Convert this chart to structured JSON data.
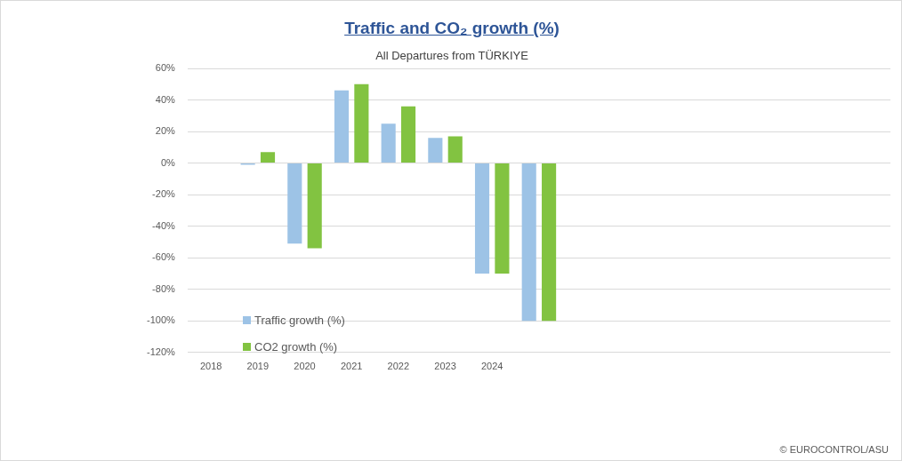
{
  "chart_data": {
    "type": "bar",
    "title": "Traffic and CO₂ growth (%)",
    "subtitle": "All Departures from TÜRKIYE",
    "categories": [
      "2018",
      "2019",
      "2020",
      "2021",
      "2022",
      "2023",
      "2024",
      null,
      null,
      null,
      null,
      null,
      null,
      null,
      null
    ],
    "series": [
      {
        "name": "Traffic growth (%)",
        "color": "#9dc3e6",
        "values": [
          null,
          -1,
          -51,
          46,
          25,
          16,
          -70,
          -100,
          null,
          null,
          null,
          null,
          null,
          null,
          null
        ]
      },
      {
        "name": "CO2 growth (%)",
        "color": "#82c341",
        "values": [
          null,
          7,
          -54,
          50,
          36,
          17,
          -70,
          -100,
          null,
          null,
          null,
          null,
          null,
          null,
          null
        ]
      }
    ],
    "ylim": [
      -120,
      60
    ],
    "yticks": [
      {
        "value": -120,
        "label": "-120%"
      },
      {
        "value": -100,
        "label": "-100%"
      },
      {
        "value": -80,
        "label": "-80%"
      },
      {
        "value": -60,
        "label": "-60%"
      },
      {
        "value": -40,
        "label": "-40%"
      },
      {
        "value": -20,
        "label": "-20%"
      },
      {
        "value": 0,
        "label": "0%"
      },
      {
        "value": 20,
        "label": "20%"
      },
      {
        "value": 40,
        "label": "40%"
      },
      {
        "value": 60,
        "label": "60%"
      }
    ],
    "grid": "y",
    "legend": "bottom left",
    "annotations": [
      "© EUROCONTROL/ASU"
    ]
  }
}
